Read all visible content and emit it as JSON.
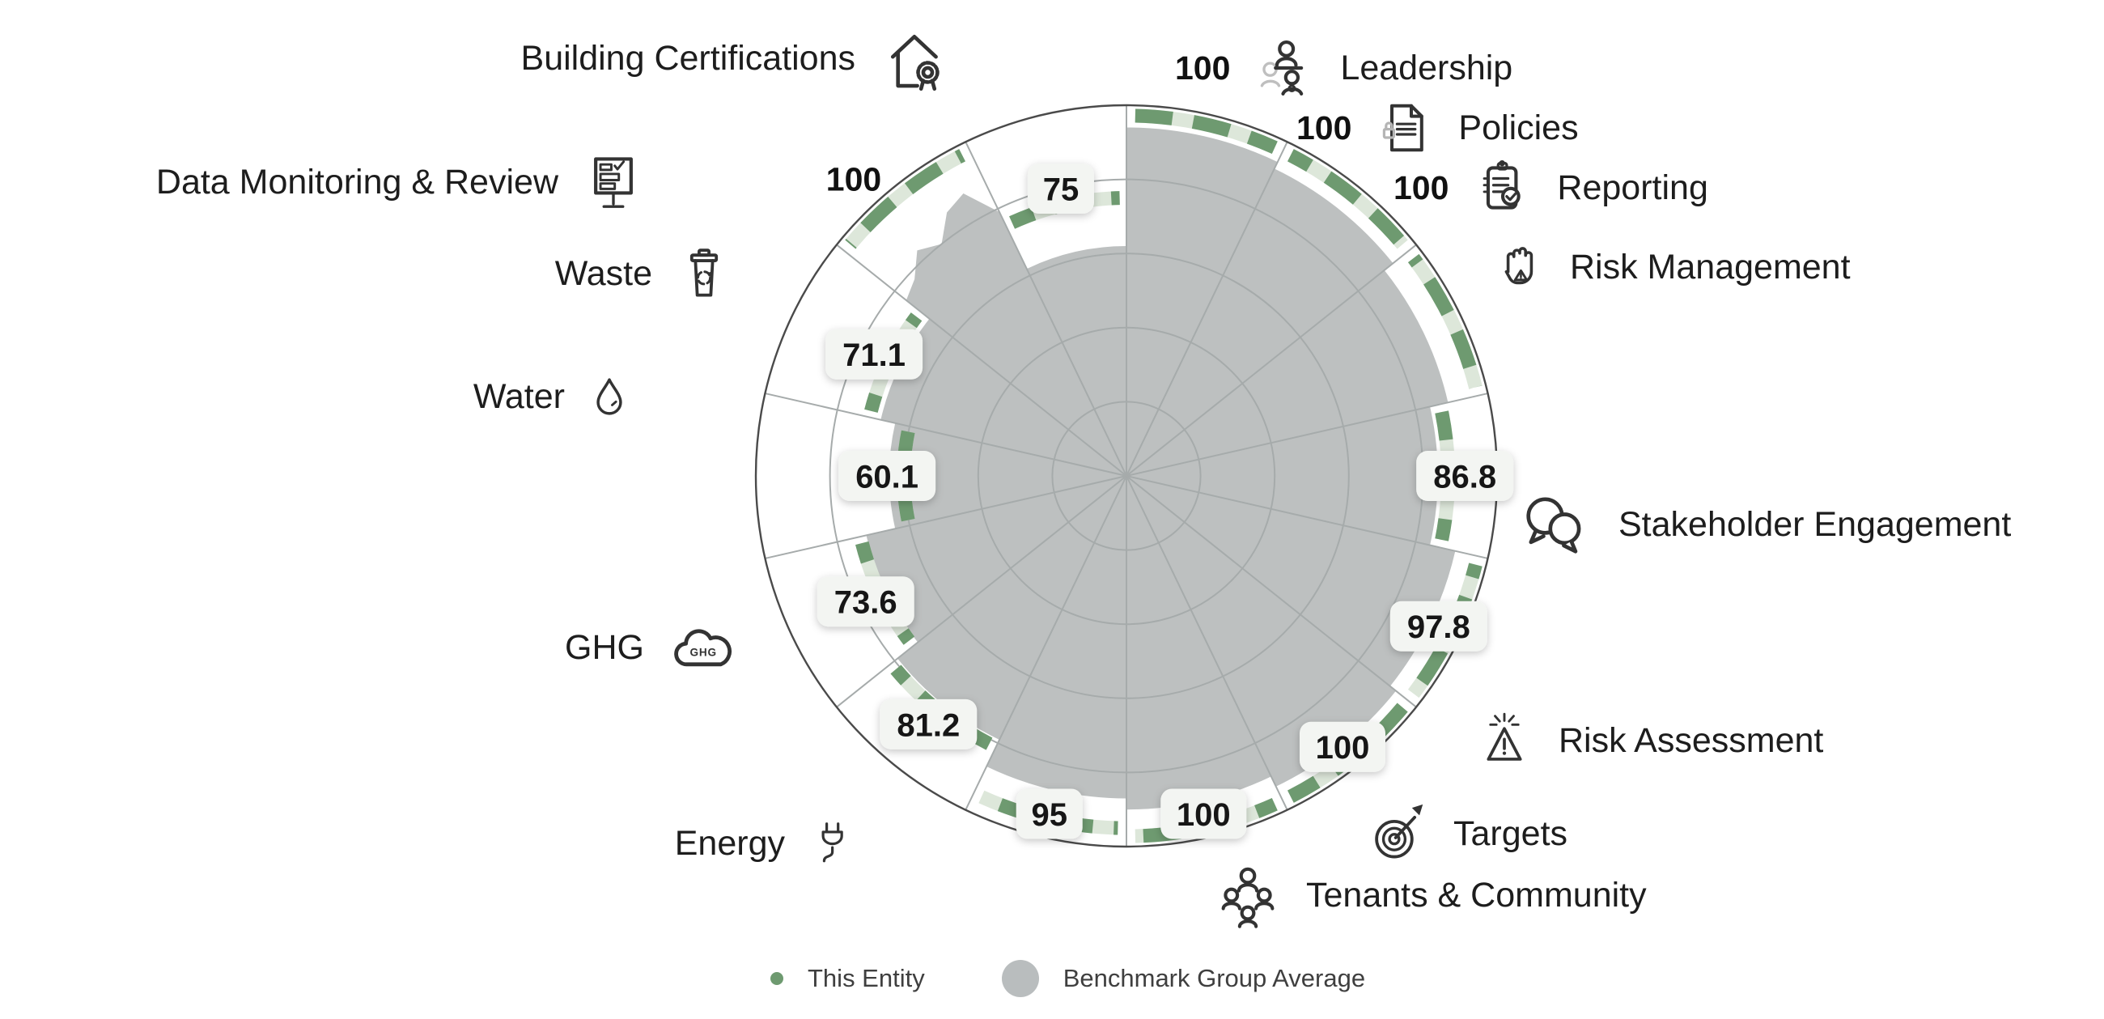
{
  "chart_data": {
    "type": "radial-bar",
    "description": "Aspect benchmark wheel: 14 sectors clockwise from top; green dashed arc = This Entity score, gray sector fill = Benchmark Group Average",
    "scale": {
      "min": 0,
      "max": 100,
      "rings": [
        20,
        40,
        60,
        80
      ]
    },
    "start_angle_deg": 0,
    "direction": "clockwise",
    "series_names": [
      "This Entity",
      "Benchmark Group Average"
    ],
    "categories": [
      {
        "name": "Leadership",
        "icon": "leadership-icon",
        "entity": 100,
        "value_label": "100",
        "benchmark": 94,
        "label_outside": true
      },
      {
        "name": "Policies",
        "icon": "policies-icon",
        "entity": 100,
        "value_label": "100",
        "benchmark": 92,
        "label_outside": true
      },
      {
        "name": "Reporting",
        "icon": "reporting-icon",
        "entity": 100,
        "value_label": "100",
        "benchmark": 89,
        "label_outside": true
      },
      {
        "name": "Risk Management",
        "icon": "risk-management-icon",
        "entity": 86.8,
        "value_label": "86.8",
        "benchmark": 84,
        "label_outside": false
      },
      {
        "name": "Stakeholder Engagement",
        "icon": "stakeholder-engagement-icon",
        "entity": 97.8,
        "value_label": "97.8",
        "benchmark": 91,
        "label_outside": false
      },
      {
        "name": "Risk Assessment",
        "icon": "risk-assessment-icon",
        "entity": 100,
        "value_label": "100",
        "benchmark": 93,
        "label_outside": false
      },
      {
        "name": "Targets",
        "icon": "targets-icon",
        "entity": 100,
        "value_label": "100",
        "benchmark": 90,
        "label_outside": false
      },
      {
        "name": "Tenants & Community",
        "icon": "tenants-community-icon",
        "entity": 95,
        "value_label": "95",
        "benchmark": 87,
        "label_outside": false
      },
      {
        "name": "Energy",
        "icon": "energy-icon",
        "entity": 81.2,
        "value_label": "81.2",
        "benchmark": 79,
        "label_outside": false
      },
      {
        "name": "GHG",
        "icon": "ghg-icon",
        "entity": 73.6,
        "value_label": "73.6",
        "benchmark": 72,
        "label_outside": false
      },
      {
        "name": "Water",
        "icon": "water-icon",
        "entity": 60.1,
        "value_label": "60.1",
        "benchmark": 64,
        "label_outside": false
      },
      {
        "name": "Waste",
        "icon": "waste-icon",
        "entity": 71.1,
        "value_label": "71.1",
        "benchmark": 68,
        "label_outside": false
      },
      {
        "name": "Data Monitoring & Review",
        "icon": "data-monitoring-icon",
        "entity": 100,
        "value_label": "100",
        "benchmark": 83,
        "benchmark_profile": [
          76,
          78,
          83,
          80,
          86,
          88,
          79
        ],
        "label_outside": true
      },
      {
        "name": "Building Certifications",
        "icon": "building-certifications-icon",
        "entity": 75,
        "value_label": "75",
        "benchmark": 62,
        "label_outside": false
      }
    ],
    "colors": {
      "entity": "#6e9a70",
      "entity_light": "#dde7da",
      "benchmark": "#bdc0c0",
      "grid": "#a6abab",
      "outer_ring": "#4a4a4a",
      "chip_bg": "#f3f5f2",
      "text": "#141414"
    }
  },
  "legend": {
    "items": [
      {
        "label": "This Entity",
        "color": "#6e9a70"
      },
      {
        "label": "Benchmark Group Average",
        "color": "#b9bdbe"
      }
    ]
  }
}
